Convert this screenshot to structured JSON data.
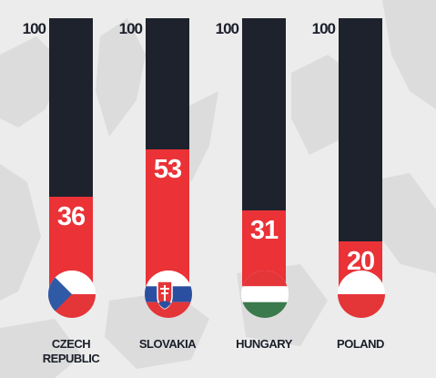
{
  "chart_data": {
    "type": "bar",
    "categories": [
      "CZECH\nREPUBLIC",
      "SLOVAKIA",
      "HUNGARY",
      "POLAND"
    ],
    "values": [
      36,
      53,
      31,
      20
    ],
    "ylim": [
      0,
      100
    ],
    "max_label": "100",
    "flags": [
      "czech-republic-flag-icon",
      "slovakia-flag-icon",
      "hungary-flag-icon",
      "poland-flag-icon"
    ],
    "colors": {
      "fill": "#ea3237",
      "track": "#1d222d",
      "background": "#ececec",
      "map": "#dadada"
    }
  }
}
